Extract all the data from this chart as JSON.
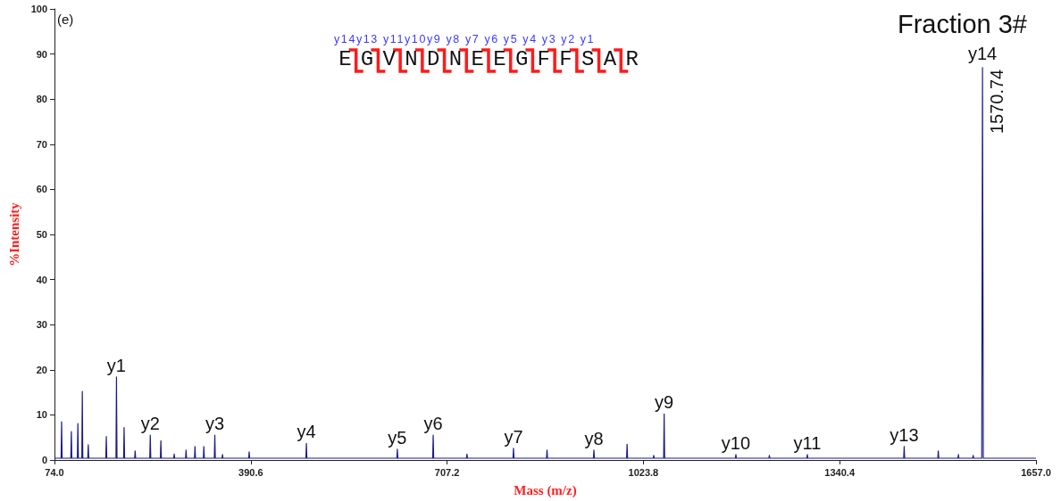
{
  "chart_data": {
    "type": "line",
    "title": "Fraction 3#",
    "xlabel": "Mass (m/z)",
    "ylabel": "%Intensity",
    "annotations": [
      "(e)",
      "y14y13 y11y10y9 y8 y7 y6 y5 y4 y3 y2 y1",
      "EGVNDNEEGFFSAR",
      {
        "text": "y1",
        "x": 174.0,
        "y": 18.4
      },
      {
        "text": "y2",
        "x": 228.5,
        "y": 5.5
      },
      {
        "text": "y3",
        "x": 332.6,
        "y": 5.5
      },
      {
        "text": "y4",
        "x": 480.3,
        "y": 3.7
      },
      {
        "text": "y5",
        "x": 627.0,
        "y": 2.4
      },
      {
        "text": "y6",
        "x": 684.8,
        "y": 5.5
      },
      {
        "text": "y7",
        "x": 814.3,
        "y": 2.6
      },
      {
        "text": "y8",
        "x": 944.0,
        "y": 2.2
      },
      {
        "text": "y9",
        "x": 1057.3,
        "y": 10.2
      },
      {
        "text": "y10",
        "x": 1173.0,
        "y": 1.2
      },
      {
        "text": "y11",
        "x": 1288.2,
        "y": 1.2
      },
      {
        "text": "y13",
        "x": 1444.4,
        "y": 3.0
      },
      {
        "text": "y14",
        "x": 1570.74,
        "y": 87
      },
      {
        "text": "1570.74",
        "x": 1570.74,
        "y": 87
      }
    ],
    "series": [
      {
        "color": "#1c1c8a",
        "x": [
          74,
          84.7,
          85.5,
          86.3,
          100.4,
          101.2,
          102.0,
          110.9,
          111.7,
          112.5,
          118.1,
          118.9,
          119.7,
          127.7,
          128.5,
          129.3,
          156.8,
          157.6,
          158.4,
          173.2,
          174.0,
          174.8,
          185.5,
          186.3,
          187.1,
          203.3,
          204.1,
          204.9,
          227.7,
          228.5,
          229.3,
          244.8,
          245.6,
          246.4,
          266.3,
          267.1,
          267.9,
          285.4,
          286.2,
          287.0,
          299.8,
          300.6,
          301.4,
          314.1,
          314.9,
          315.7,
          331.8,
          332.6,
          333.4,
          344.2,
          345.0,
          345.8,
          387.2,
          388.0,
          388.8,
          479.5,
          480.3,
          481.1,
          626.2,
          627.0,
          627.8,
          684.0,
          684.8,
          685.6,
          738.5,
          739.3,
          740.1,
          813.5,
          814.3,
          815.1,
          867.6,
          868.4,
          869.2,
          943.2,
          944.0,
          944.8,
          996.7,
          997.5,
          998.3,
          1039.7,
          1040.5,
          1041.3,
          1056.5,
          1057.3,
          1058.1,
          1172.2,
          1173.0,
          1173.8,
          1226.2,
          1227.0,
          1227.8,
          1287.4,
          1288.2,
          1289.0,
          1443.6,
          1444.4,
          1445.2,
          1498.6,
          1499.4,
          1500.2,
          1531.1,
          1531.9,
          1532.7,
          1554.9,
          1555.7,
          1556.5,
          1569.5,
          1570.74,
          1572.0,
          1657
        ],
        "values": [
          0.4,
          0.4,
          8.5,
          0.4,
          0.4,
          6.3,
          0.4,
          0.4,
          8.1,
          0.4,
          0.4,
          15.2,
          0.4,
          0.4,
          3.4,
          0.4,
          0.4,
          5.2,
          0.4,
          0.4,
          18.4,
          0.4,
          0.4,
          7.2,
          0.4,
          0.4,
          2.0,
          0.4,
          0.4,
          5.5,
          0.4,
          0.4,
          4.3,
          0.4,
          0.4,
          1.3,
          0.4,
          0.4,
          2.2,
          0.4,
          0.4,
          3.0,
          0.4,
          0.4,
          3.0,
          0.4,
          0.4,
          5.5,
          0.4,
          0.4,
          1.2,
          0.4,
          0.4,
          1.8,
          0.4,
          0.4,
          3.7,
          0.4,
          0.4,
          2.4,
          0.4,
          0.4,
          5.5,
          0.4,
          0.4,
          1.3,
          0.4,
          0.4,
          2.6,
          0.4,
          0.4,
          2.2,
          0.4,
          0.4,
          2.2,
          0.4,
          0.4,
          3.5,
          0.4,
          0.4,
          1.0,
          0.4,
          0.4,
          10.2,
          0.4,
          0.4,
          1.2,
          0.4,
          0.4,
          1.0,
          0.4,
          0.4,
          1.2,
          0.4,
          0.4,
          3.0,
          0.4,
          0.4,
          2.0,
          0.4,
          0.4,
          1.2,
          0.4,
          0.4,
          1.0,
          0.4,
          0.4,
          87,
          0.4,
          0.4
        ]
      }
    ],
    "xlim": [
      74,
      1657
    ],
    "ylim": [
      0,
      100
    ],
    "xticks": [
      {
        "value": 74,
        "label": "74.0"
      },
      {
        "value": 390.6,
        "label": "390.6"
      },
      {
        "value": 707.2,
        "label": "707.2"
      },
      {
        "value": 1023.8,
        "label": "1023.8"
      },
      {
        "value": 1340.4,
        "label": "1340.4"
      },
      {
        "value": 1657,
        "label": "1657.0"
      }
    ],
    "yticks": [
      0,
      10,
      20,
      30,
      40,
      50,
      60,
      70,
      80,
      90,
      100
    ],
    "marker": "none",
    "line_style": "solid"
  }
}
